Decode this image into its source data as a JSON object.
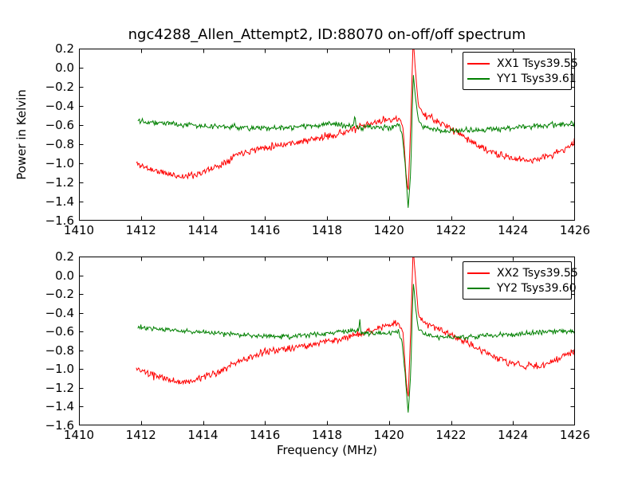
{
  "figure": {
    "title": "ngc4288_Allen_Attempt2, ID:88070 on-off/off spectrum",
    "background": "#ffffff",
    "accent_colors": {
      "xx_red": "#ff0000",
      "yy_green": "#008000"
    }
  },
  "chart_data": [
    {
      "type": "line",
      "subplot": "top",
      "xlabel": "",
      "ylabel": "Power in Kelvin",
      "xlim": [
        1410,
        1426
      ],
      "ylim": [
        -1.6,
        0.2
      ],
      "xticks": [
        1410,
        1412,
        1414,
        1416,
        1418,
        1420,
        1422,
        1424,
        1426
      ],
      "yticks": [
        0.2,
        0.0,
        -0.2,
        -0.4,
        -0.6,
        -0.8,
        -1.0,
        -1.2,
        -1.4,
        -1.6
      ],
      "xtick_labels": [
        "1410",
        "1412",
        "1414",
        "1416",
        "1418",
        "1420",
        "1422",
        "1424",
        "1426"
      ],
      "ytick_labels": [
        "0.2",
        "0.0",
        "−0.2",
        "−0.4",
        "−0.6",
        "−0.8",
        "−1.0",
        "−1.2",
        "−1.4",
        "−1.6"
      ],
      "grid": false,
      "legend_position": "upper right",
      "spike_mhz": 1420.7,
      "legend": [
        {
          "label": "XX1 Tsys39.55",
          "color": "#ff0000"
        },
        {
          "label": "YY1 Tsys39.61",
          "color": "#008000"
        }
      ],
      "series": [
        {
          "name": "XX1",
          "color": "#ff0000",
          "noise": 0.026,
          "seed": 11,
          "points": 580,
          "anchors": [
            [
              1411.85,
              -1.0
            ],
            [
              1412.2,
              -1.05
            ],
            [
              1412.6,
              -1.09
            ],
            [
              1413.0,
              -1.12
            ],
            [
              1413.35,
              -1.14
            ],
            [
              1413.7,
              -1.12
            ],
            [
              1414.1,
              -1.08
            ],
            [
              1414.6,
              -1.01
            ],
            [
              1415.1,
              -0.9
            ],
            [
              1415.6,
              -0.86
            ],
            [
              1416.2,
              -0.82
            ],
            [
              1416.8,
              -0.79
            ],
            [
              1417.4,
              -0.76
            ],
            [
              1418.0,
              -0.72
            ],
            [
              1418.6,
              -0.67
            ],
            [
              1419.2,
              -0.61
            ],
            [
              1419.7,
              -0.56
            ],
            [
              1420.1,
              -0.53
            ],
            [
              1420.35,
              -0.55
            ],
            [
              1420.45,
              -0.62
            ],
            [
              1420.55,
              -1.1
            ],
            [
              1420.62,
              -1.3
            ],
            [
              1420.7,
              -0.6
            ],
            [
              1420.78,
              0.3
            ],
            [
              1420.86,
              -0.05
            ],
            [
              1420.95,
              -0.4
            ],
            [
              1421.1,
              -0.48
            ],
            [
              1421.3,
              -0.52
            ],
            [
              1421.6,
              -0.57
            ],
            [
              1421.9,
              -0.62
            ],
            [
              1422.2,
              -0.67
            ],
            [
              1422.6,
              -0.76
            ],
            [
              1423.0,
              -0.84
            ],
            [
              1423.5,
              -0.91
            ],
            [
              1424.0,
              -0.95
            ],
            [
              1424.5,
              -0.97
            ],
            [
              1425.0,
              -0.94
            ],
            [
              1425.5,
              -0.88
            ],
            [
              1426.0,
              -0.79
            ]
          ]
        },
        {
          "name": "YY1",
          "color": "#008000",
          "noise": 0.02,
          "seed": 22,
          "points": 580,
          "anchors": [
            [
              1411.9,
              -0.545
            ],
            [
              1412.4,
              -0.57
            ],
            [
              1413.0,
              -0.585
            ],
            [
              1413.6,
              -0.6
            ],
            [
              1414.2,
              -0.615
            ],
            [
              1415.0,
              -0.62
            ],
            [
              1416.0,
              -0.635
            ],
            [
              1417.0,
              -0.625
            ],
            [
              1417.6,
              -0.6
            ],
            [
              1418.1,
              -0.59
            ],
            [
              1418.6,
              -0.615
            ],
            [
              1418.86,
              -0.6
            ],
            [
              1418.9,
              -0.48
            ],
            [
              1418.94,
              -0.62
            ],
            [
              1419.3,
              -0.625
            ],
            [
              1419.8,
              -0.63
            ],
            [
              1420.1,
              -0.615
            ],
            [
              1420.3,
              -0.58
            ],
            [
              1420.42,
              -0.68
            ],
            [
              1420.52,
              -1.0
            ],
            [
              1420.62,
              -1.47
            ],
            [
              1420.7,
              -1.1
            ],
            [
              1420.78,
              -0.05
            ],
            [
              1420.85,
              -0.3
            ],
            [
              1420.95,
              -0.55
            ],
            [
              1421.1,
              -0.62
            ],
            [
              1421.5,
              -0.655
            ],
            [
              1422.0,
              -0.66
            ],
            [
              1422.5,
              -0.655
            ],
            [
              1423.0,
              -0.65
            ],
            [
              1423.5,
              -0.64
            ],
            [
              1424.0,
              -0.63
            ],
            [
              1424.6,
              -0.615
            ],
            [
              1425.2,
              -0.6
            ],
            [
              1426.0,
              -0.585
            ]
          ]
        }
      ]
    },
    {
      "type": "line",
      "subplot": "bottom",
      "xlabel": "Frequency (MHz)",
      "ylabel": "",
      "xlim": [
        1410,
        1426
      ],
      "ylim": [
        -1.6,
        0.2
      ],
      "xticks": [
        1410,
        1412,
        1414,
        1416,
        1418,
        1420,
        1422,
        1424,
        1426
      ],
      "yticks": [
        0.2,
        0.0,
        -0.2,
        -0.4,
        -0.6,
        -0.8,
        -1.0,
        -1.2,
        -1.4,
        -1.6
      ],
      "xtick_labels": [
        "1410",
        "1412",
        "1414",
        "1416",
        "1418",
        "1420",
        "1422",
        "1424",
        "1426"
      ],
      "ytick_labels": [
        "0.2",
        "0.0",
        "−0.2",
        "−0.4",
        "−0.6",
        "−0.8",
        "−1.0",
        "−1.2",
        "−1.4",
        "−1.6"
      ],
      "grid": false,
      "legend_position": "upper right",
      "spike_mhz": 1420.7,
      "legend": [
        {
          "label": "XX2 Tsys39.55",
          "color": "#ff0000"
        },
        {
          "label": "YY2 Tsys39.60",
          "color": "#008000"
        }
      ],
      "series": [
        {
          "name": "XX2",
          "color": "#ff0000",
          "noise": 0.026,
          "seed": 33,
          "points": 580,
          "anchors": [
            [
              1411.85,
              -1.0
            ],
            [
              1412.3,
              -1.06
            ],
            [
              1412.8,
              -1.1
            ],
            [
              1413.2,
              -1.14
            ],
            [
              1413.6,
              -1.13
            ],
            [
              1414.0,
              -1.09
            ],
            [
              1414.5,
              -1.03
            ],
            [
              1415.0,
              -0.95
            ],
            [
              1415.5,
              -0.88
            ],
            [
              1416.0,
              -0.82
            ],
            [
              1416.6,
              -0.78
            ],
            [
              1417.2,
              -0.76
            ],
            [
              1417.8,
              -0.72
            ],
            [
              1418.4,
              -0.68
            ],
            [
              1419.0,
              -0.63
            ],
            [
              1419.5,
              -0.58
            ],
            [
              1420.0,
              -0.53
            ],
            [
              1420.3,
              -0.51
            ],
            [
              1420.45,
              -0.6
            ],
            [
              1420.55,
              -1.1
            ],
            [
              1420.62,
              -1.32
            ],
            [
              1420.7,
              -0.6
            ],
            [
              1420.78,
              0.3
            ],
            [
              1420.86,
              -0.05
            ],
            [
              1420.95,
              -0.42
            ],
            [
              1421.1,
              -0.5
            ],
            [
              1421.4,
              -0.54
            ],
            [
              1421.8,
              -0.6
            ],
            [
              1422.3,
              -0.68
            ],
            [
              1422.8,
              -0.77
            ],
            [
              1423.3,
              -0.85
            ],
            [
              1423.8,
              -0.92
            ],
            [
              1424.3,
              -0.96
            ],
            [
              1424.8,
              -0.97
            ],
            [
              1425.3,
              -0.92
            ],
            [
              1426.0,
              -0.8
            ]
          ]
        },
        {
          "name": "YY2",
          "color": "#008000",
          "noise": 0.02,
          "seed": 44,
          "points": 580,
          "anchors": [
            [
              1411.9,
              -0.555
            ],
            [
              1412.5,
              -0.57
            ],
            [
              1413.2,
              -0.59
            ],
            [
              1414.0,
              -0.61
            ],
            [
              1414.8,
              -0.625
            ],
            [
              1415.6,
              -0.64
            ],
            [
              1416.4,
              -0.65
            ],
            [
              1417.0,
              -0.645
            ],
            [
              1417.6,
              -0.63
            ],
            [
              1418.2,
              -0.61
            ],
            [
              1418.7,
              -0.595
            ],
            [
              1419.02,
              -0.6
            ],
            [
              1419.06,
              -0.47
            ],
            [
              1419.1,
              -0.61
            ],
            [
              1419.5,
              -0.62
            ],
            [
              1420.0,
              -0.625
            ],
            [
              1420.3,
              -0.59
            ],
            [
              1420.42,
              -0.7
            ],
            [
              1420.52,
              -1.05
            ],
            [
              1420.62,
              -1.47
            ],
            [
              1420.7,
              -1.05
            ],
            [
              1420.78,
              -0.06
            ],
            [
              1420.86,
              -0.35
            ],
            [
              1420.95,
              -0.58
            ],
            [
              1421.2,
              -0.63
            ],
            [
              1421.6,
              -0.655
            ],
            [
              1422.1,
              -0.66
            ],
            [
              1422.6,
              -0.655
            ],
            [
              1423.1,
              -0.645
            ],
            [
              1423.7,
              -0.635
            ],
            [
              1424.3,
              -0.62
            ],
            [
              1425.0,
              -0.605
            ],
            [
              1426.0,
              -0.59
            ]
          ]
        }
      ]
    }
  ]
}
